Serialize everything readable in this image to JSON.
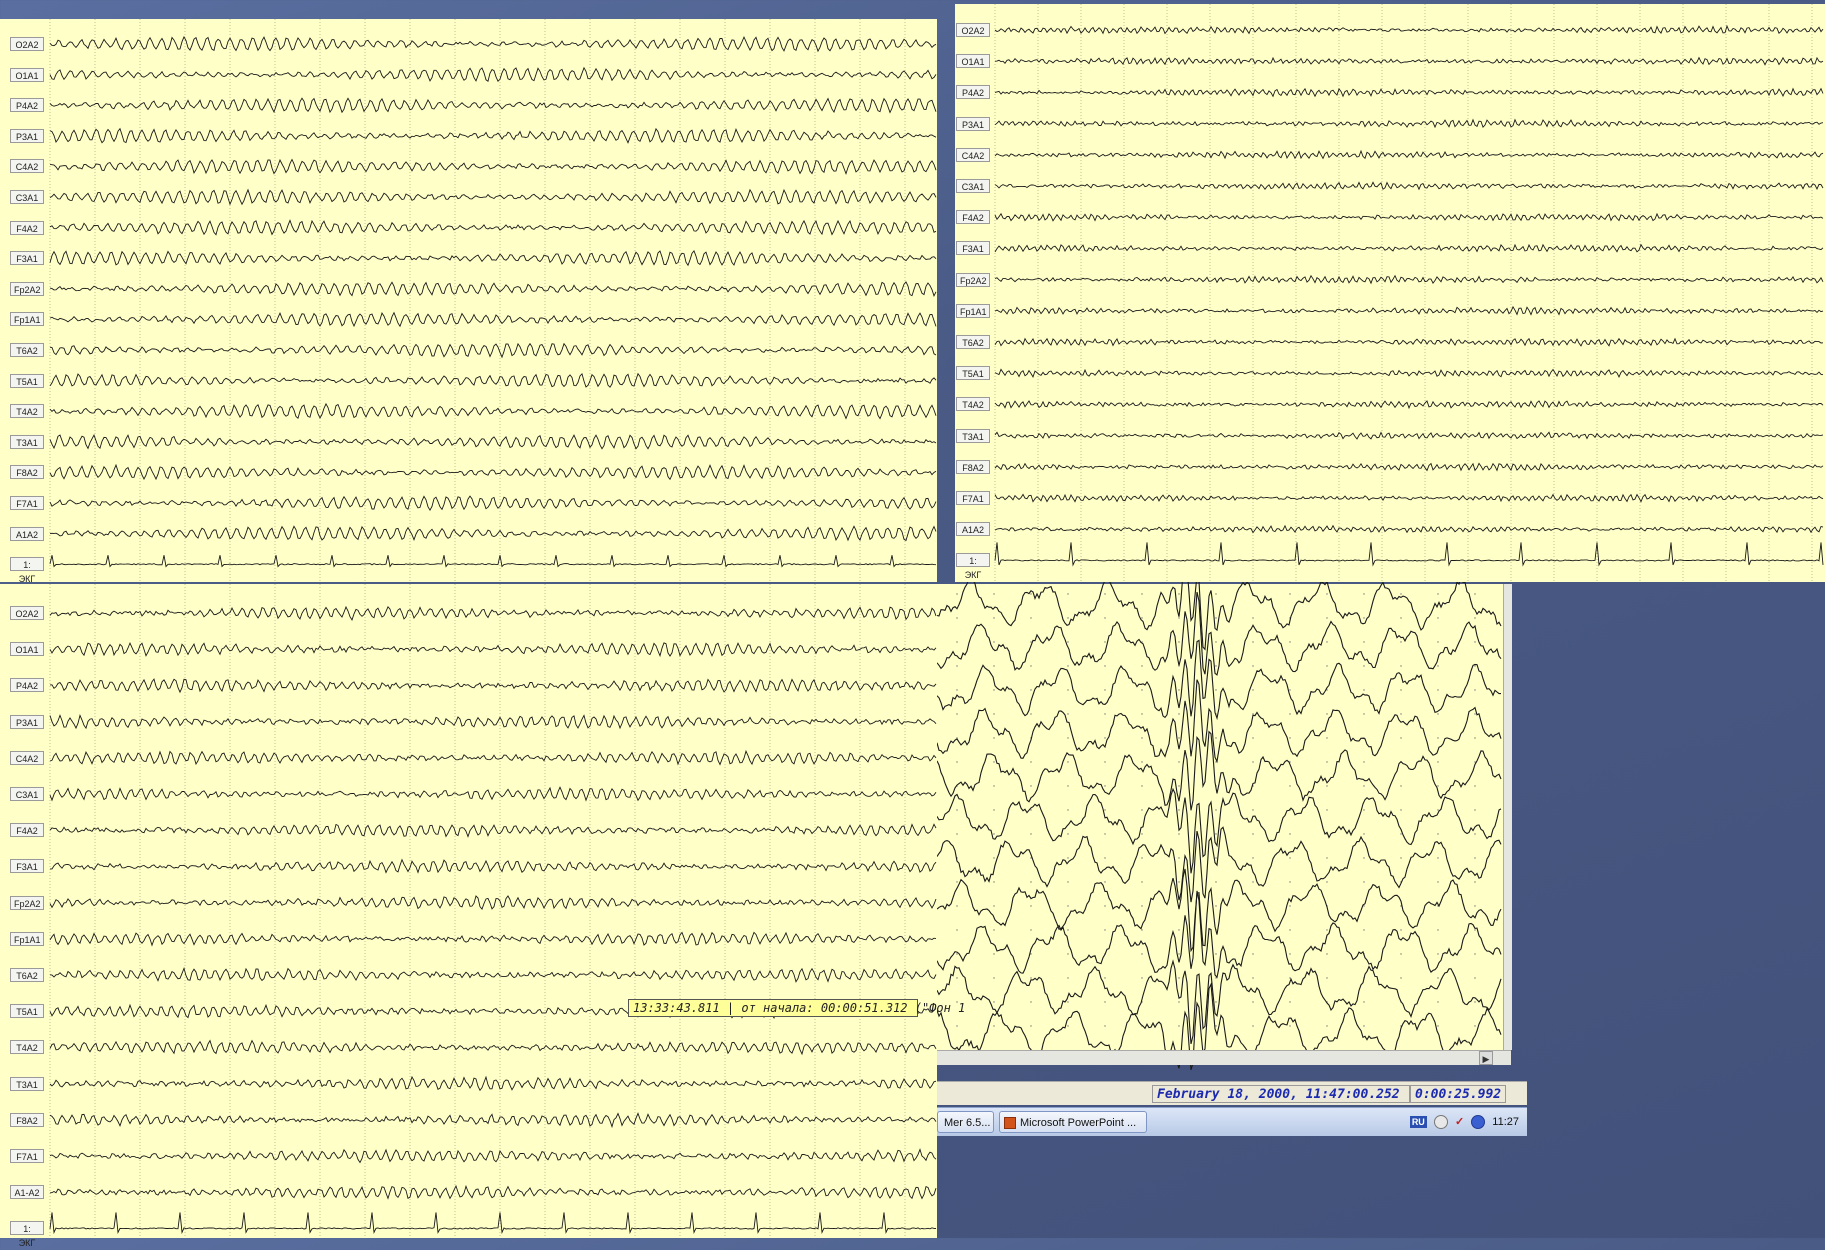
{
  "channels_top": [
    "O2A2",
    "O1A1",
    "P4A2",
    "P3A1",
    "C4A2",
    "C3A1",
    "F4A2",
    "F3A1",
    "Fp2A2",
    "Fp1A1",
    "T6A2",
    "T5A1",
    "T4A2",
    "T3A1",
    "F8A2",
    "F7A1",
    "A1A2",
    "1: ЭКГ"
  ],
  "channels_bottom": [
    "O2A2",
    "O1A1",
    "P4A2",
    "P3A1",
    "C4A2",
    "C3A1",
    "F4A2",
    "F3A1",
    "Fp2A2",
    "Fp1A1",
    "T6A2",
    "T5A1",
    "T4A2",
    "T3A1",
    "F8A2",
    "F7A1",
    "A1-A2",
    "1: ЭКГ"
  ],
  "tooltip": "13:33:43.811 | от начала: 00:00:51.312 (\"Фон 1",
  "status": {
    "datetime": "February 18, 2000, 11:47:00.252",
    "elapsed": "0:00:25.992"
  },
  "taskbar": {
    "task_left": "Mer 6.5...",
    "task_powerpoint": "Microsoft PowerPoint ...",
    "lang": "RU",
    "clock": "11:27"
  },
  "colors": {
    "paper": "#ffffc8",
    "trace": "#1a1a1a",
    "grid": "#9a9a6a",
    "status_text": "#1c2ab0"
  }
}
